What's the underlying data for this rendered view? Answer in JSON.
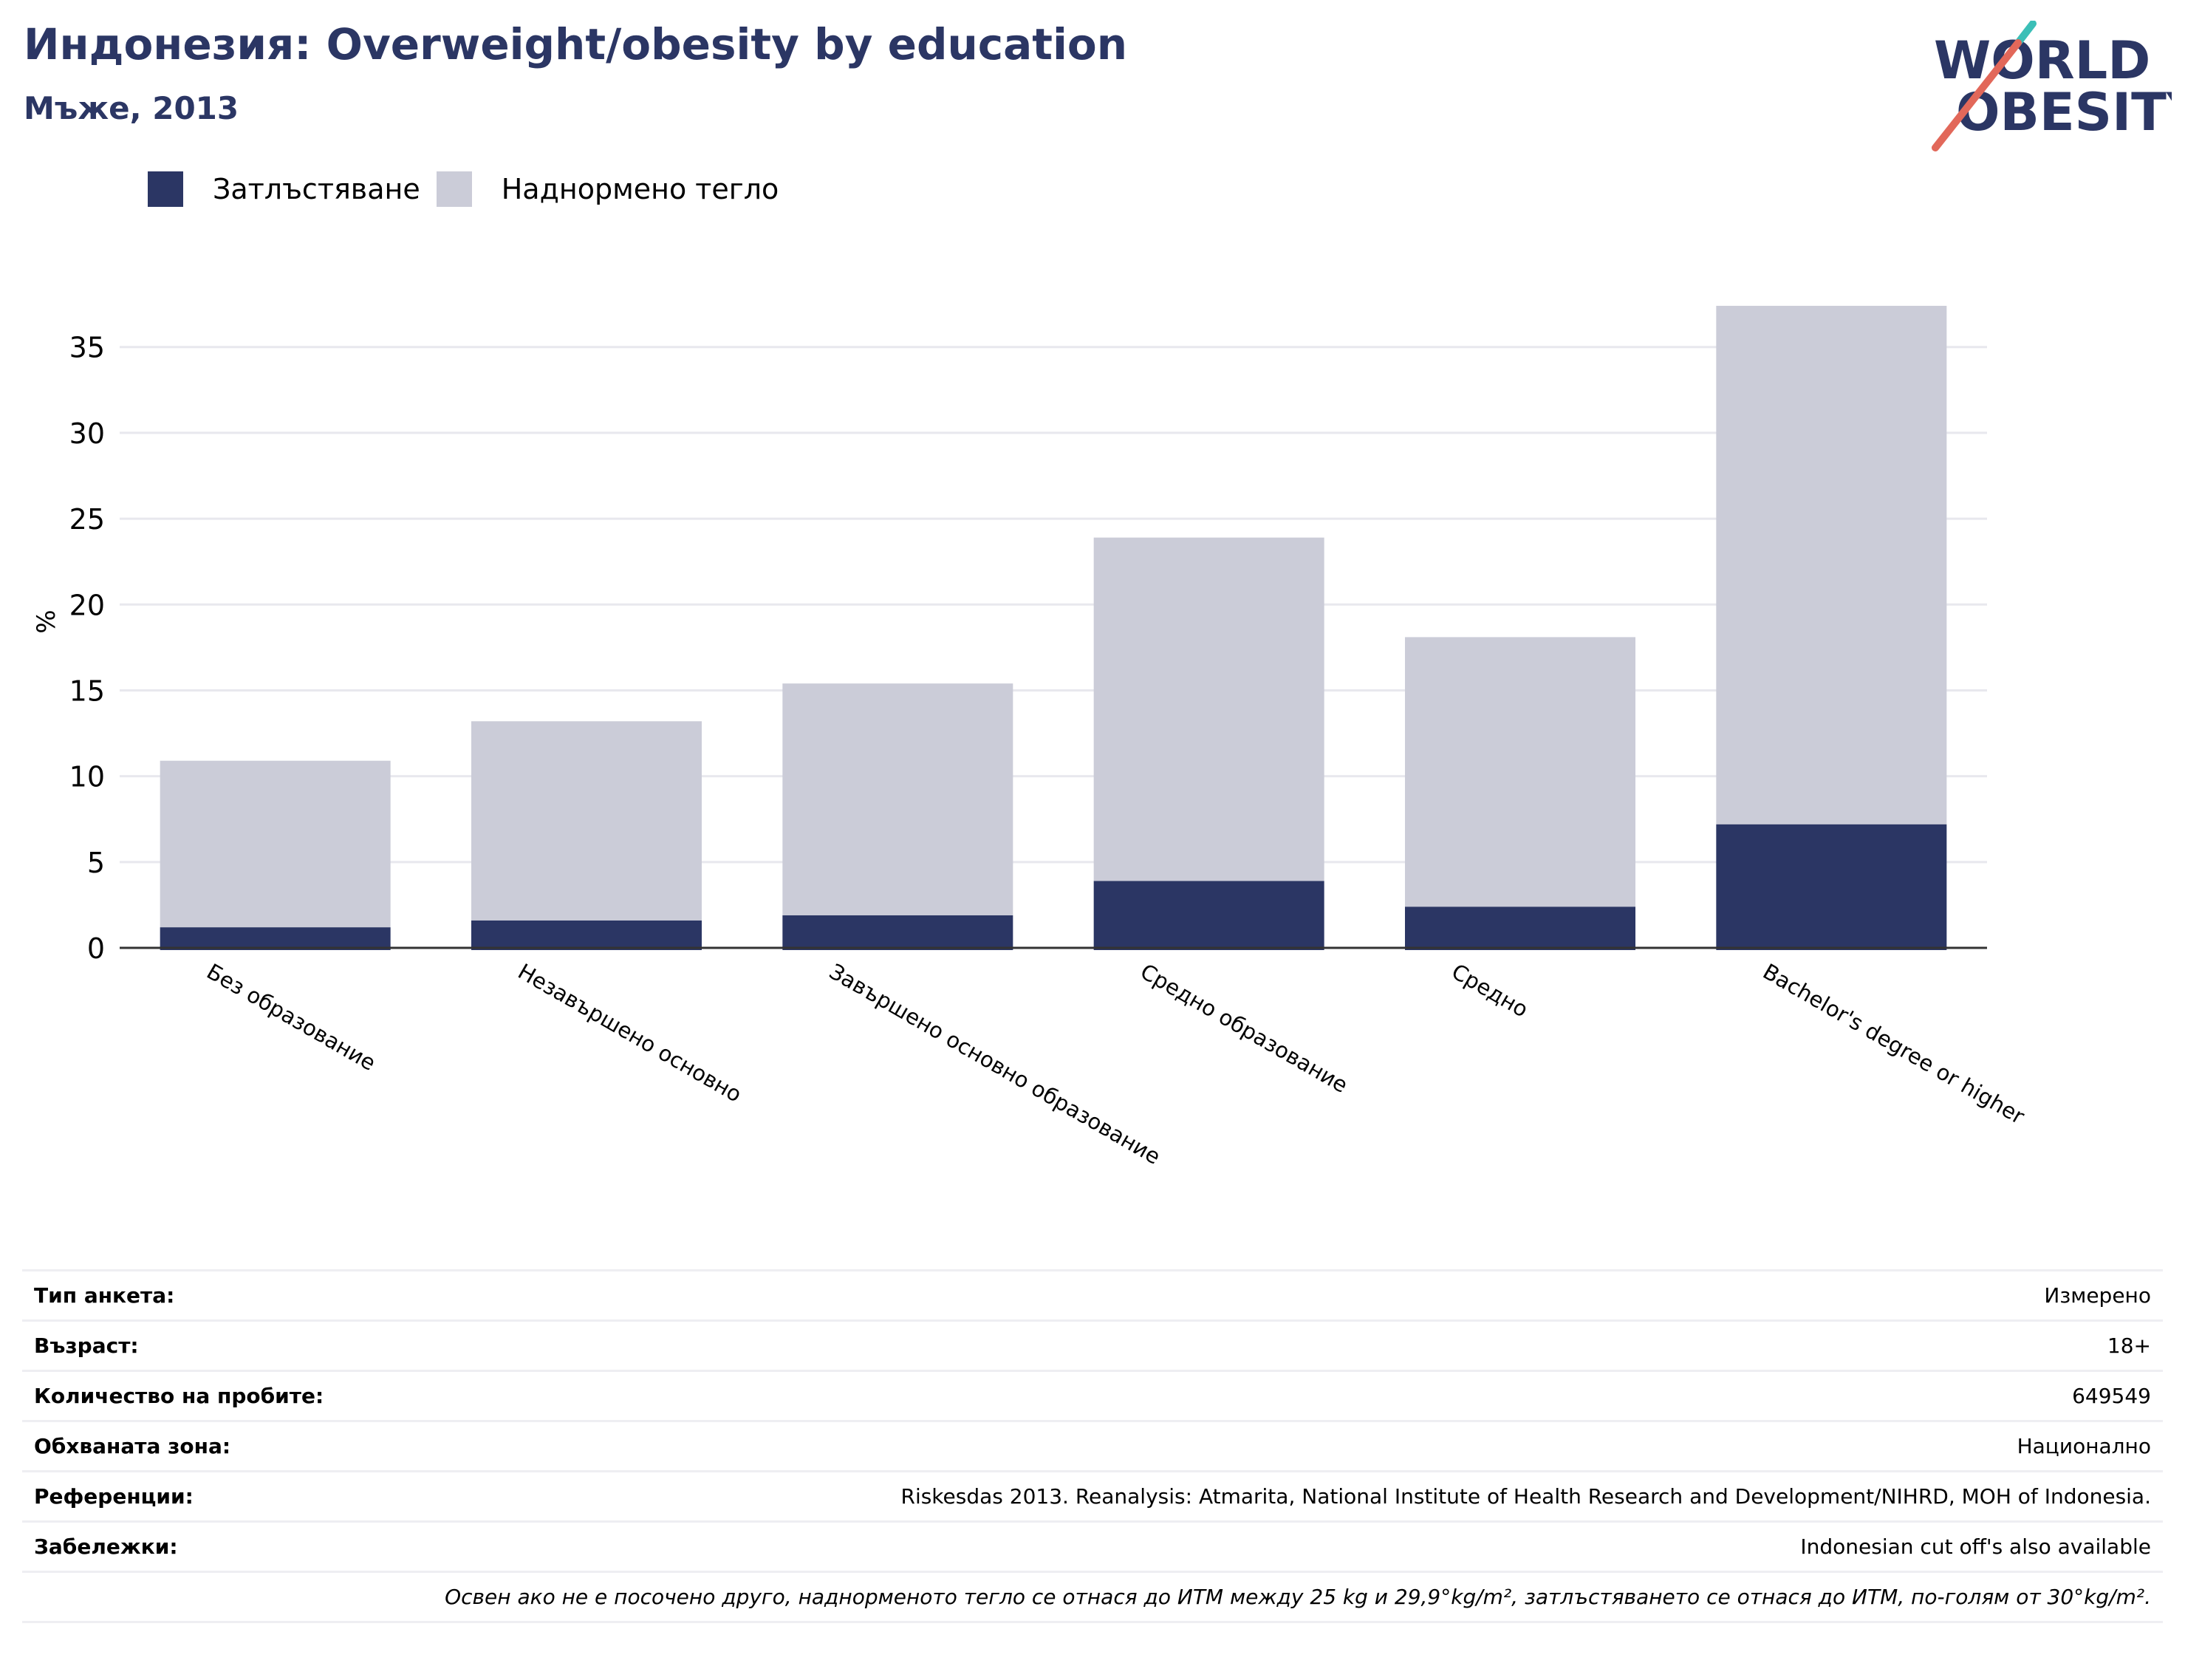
{
  "header": {
    "title": "Индонезия: Overweight/obesity by education",
    "subtitle": "Мъже, 2013",
    "logo": {
      "line1": "WORLD",
      "line2": "OBESITY"
    }
  },
  "colors": {
    "obesity": "#2b3664",
    "overweight": "#cbccd8",
    "title": "#2b3664",
    "logo_teal": "#3bbfb7",
    "logo_coral": "#e2685a"
  },
  "chart_data": {
    "type": "bar",
    "stacked": true,
    "categories": [
      "Без образование",
      "Незавършено основно",
      "Завършено основно образование",
      "Средно образование",
      "Средно",
      "Bachelor's degree or higher"
    ],
    "series": [
      {
        "name": "Затлъстяване",
        "values": [
          1.2,
          1.6,
          1.9,
          3.9,
          2.4,
          7.2
        ]
      },
      {
        "name": "Наднормено тегло",
        "values": [
          9.7,
          11.6,
          13.5,
          20.0,
          15.7,
          30.2
        ]
      }
    ],
    "ylabel": "%",
    "ylim": [
      0,
      38
    ],
    "yticks": [
      0,
      5,
      10,
      15,
      20,
      25,
      30,
      35
    ],
    "grid": true,
    "legend": "top-left"
  },
  "meta": {
    "rows": [
      {
        "label": "Тип анкета:",
        "value": "Измерено"
      },
      {
        "label": "Възраст:",
        "value": "18+"
      },
      {
        "label": "Количество на пробите:",
        "value": "649549"
      },
      {
        "label": "Обхваната зона:",
        "value": "Национално"
      },
      {
        "label": "Референции:",
        "value": "Riskesdas 2013. Reanalysis: Atmarita, National Institute of Health Research and Development/NIHRD, MOH of Indonesia."
      },
      {
        "label": "Забележки:",
        "value": "Indonesian cut off's also available"
      }
    ],
    "footnote": "Освен ако не е посочено друго, наднорменото тегло се отнася до ИТМ между 25 kg и 29,9°kg/m², затлъстяването се отнася до ИТМ, по-голям от 30°kg/m²."
  }
}
